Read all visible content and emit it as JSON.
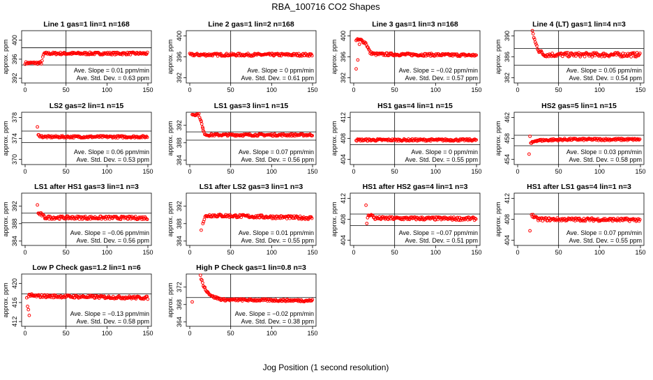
{
  "title": "RBA_100716  CO2 Shapes",
  "xlabel": "Jog Position (1 second resolution)",
  "ylabel": "approx. ppm",
  "x_ticks": [
    0,
    50,
    100,
    150
  ],
  "stat_labels": {
    "slope_prefix": "Ave. Slope = ",
    "slope_unit": " ppm/min",
    "sd_prefix": "Ave. Std. Dev. = ",
    "sd_unit": " ppm"
  },
  "marker_color": "#ff0000",
  "chart_data": [
    {
      "type": "scatter",
      "title": "Line 1 gas=1 lin=1 n=168",
      "xlim": [
        0,
        150
      ],
      "ylim": [
        391,
        402
      ],
      "y_ticks": [
        392,
        396,
        400
      ],
      "vline": 50,
      "hlines": [
        394.8,
        398.4
      ],
      "slope": "0.01",
      "sd": "0.63",
      "profile": [
        [
          0,
          395.2
        ],
        [
          20,
          395.2
        ],
        [
          23,
          397.2
        ],
        [
          150,
          397.2
        ]
      ],
      "noise": 0.25,
      "outliers": []
    },
    {
      "type": "scatter",
      "title": "Line 2 gas=1 lin=2 n=168",
      "xlim": [
        0,
        150
      ],
      "ylim": [
        391,
        401
      ],
      "y_ticks": [
        392,
        396,
        400
      ],
      "vline": 50,
      "hlines": [],
      "slope": "0",
      "sd": "0.61",
      "profile": [
        [
          0,
          396.4
        ],
        [
          150,
          396.4
        ]
      ],
      "noise": 0.25,
      "outliers": []
    },
    {
      "type": "scatter",
      "title": "Line 3 gas=1 lin=3 n=168",
      "xlim": [
        0,
        150
      ],
      "ylim": [
        391,
        401
      ],
      "y_ticks": [
        392,
        396,
        400
      ],
      "vline": 50,
      "hlines": [],
      "slope": "−0.02",
      "sd": "0.57",
      "profile": [
        [
          3,
          399.2
        ],
        [
          9,
          399.2
        ],
        [
          15,
          398.6
        ],
        [
          20,
          396.8
        ],
        [
          26,
          396.5
        ],
        [
          150,
          396.3
        ]
      ],
      "noise": 0.25,
      "outliers": [
        [
          3,
          393.7
        ],
        [
          5,
          395.4
        ],
        [
          7,
          398.4
        ]
      ]
    },
    {
      "type": "scatter",
      "title": "Line 4 (LT) gas=1 lin=4 n=3",
      "xlim": [
        0,
        150
      ],
      "ylim": [
        381,
        391
      ],
      "y_ticks": [
        382,
        386,
        390
      ],
      "vline": 50,
      "hlines": [
        384.4,
        387.6
      ],
      "slope": "0.05",
      "sd": "0.54",
      "profile": [
        [
          18,
          390.9
        ],
        [
          22,
          388.5
        ],
        [
          26,
          387.2
        ],
        [
          32,
          386.4
        ],
        [
          150,
          386.4
        ]
      ],
      "noise": 0.4,
      "outliers": []
    },
    {
      "type": "scatter",
      "title": "LS2 gas=2 lin=1 n=15",
      "xlim": [
        0,
        150
      ],
      "ylim": [
        369,
        379
      ],
      "y_ticks": [
        370,
        374,
        378
      ],
      "vline": 50,
      "hlines": [
        373.2,
        375.4
      ],
      "slope": "0.06",
      "sd": "0.53",
      "profile": [
        [
          16,
          374.6
        ],
        [
          22,
          374.3
        ],
        [
          150,
          374.3
        ]
      ],
      "noise": 0.2,
      "outliers": [
        [
          15,
          376.2
        ]
      ]
    },
    {
      "type": "scatter",
      "title": "LS1 gas=3 lin=1 n=15",
      "xlim": [
        0,
        150
      ],
      "ylim": [
        383,
        395
      ],
      "y_ticks": [
        384,
        388,
        392
      ],
      "vline": 50,
      "hlines": [
        388.6,
        390.5
      ],
      "slope": "0.07",
      "sd": "0.56",
      "profile": [
        [
          3,
          394.5
        ],
        [
          11,
          394.5
        ],
        [
          13,
          393.5
        ],
        [
          15,
          392
        ],
        [
          17,
          390.3
        ],
        [
          21,
          389.8
        ],
        [
          150,
          389.8
        ]
      ],
      "noise": 0.25,
      "outliers": [
        [
          14,
          392.9
        ],
        [
          16,
          391.3
        ]
      ]
    },
    {
      "type": "scatter",
      "title": "HS1 gas=4 lin=1 n=15",
      "xlim": [
        0,
        150
      ],
      "ylim": [
        403,
        413
      ],
      "y_ticks": [
        404,
        408,
        412
      ],
      "vline": 50,
      "hlines": [
        406.8,
        409.4
      ],
      "slope": "0",
      "sd": "0.55",
      "profile": [
        [
          3,
          407.7
        ],
        [
          150,
          407.7
        ]
      ],
      "noise": 0.2,
      "outliers": []
    },
    {
      "type": "scatter",
      "title": "HS2 gas=5 lin=1 n=15",
      "xlim": [
        0,
        150
      ],
      "ylim": [
        453,
        463
      ],
      "y_ticks": [
        454,
        458,
        462
      ],
      "vline": 50,
      "hlines": [
        456.6,
        458.6
      ],
      "slope": "0.03",
      "sd": "0.58",
      "profile": [
        [
          16,
          457.0
        ],
        [
          22,
          457.6
        ],
        [
          60,
          457.8
        ],
        [
          150,
          457.8
        ]
      ],
      "noise": 0.2,
      "outliers": [
        [
          14,
          455.0
        ],
        [
          15,
          458.4
        ]
      ]
    },
    {
      "type": "scatter",
      "title": "LS1 after HS1 gas=3 lin=1 n=3",
      "xlim": [
        0,
        150
      ],
      "ylim": [
        383,
        395
      ],
      "y_ticks": [
        384,
        388,
        392
      ],
      "vline": 50,
      "hlines": [
        388.2,
        390.4
      ],
      "slope": "−0.06",
      "sd": "0.56",
      "profile": [
        [
          16,
          390.3
        ],
        [
          20,
          390.1
        ],
        [
          24,
          389.4
        ],
        [
          150,
          389.3
        ]
      ],
      "noise": 0.35,
      "outliers": [
        [
          15,
          392.3
        ]
      ]
    },
    {
      "type": "scatter",
      "title": "LS1 after LS2 gas=3 lin=1 n=3",
      "xlim": [
        0,
        150
      ],
      "ylim": [
        383,
        395
      ],
      "y_ticks": [
        384,
        388,
        392
      ],
      "vline": 50,
      "hlines": [],
      "slope": "0.01",
      "sd": "0.55",
      "profile": [
        [
          16,
          388.2
        ],
        [
          19,
          389.6
        ],
        [
          23,
          389.9
        ],
        [
          150,
          389.3
        ]
      ],
      "noise": 0.35,
      "outliers": [
        [
          14,
          386.5
        ]
      ]
    },
    {
      "type": "scatter",
      "title": "HS1 after HS2 gas=4 lin=1 n=3",
      "xlim": [
        0,
        150
      ],
      "ylim": [
        403,
        413
      ],
      "y_ticks": [
        404,
        408,
        412
      ],
      "vline": 50,
      "hlines": [
        406.8,
        409.0
      ],
      "slope": "−0.07",
      "sd": "0.51",
      "profile": [
        [
          17,
          408.4
        ],
        [
          20,
          409.0
        ],
        [
          26,
          408.2
        ],
        [
          150,
          408.1
        ]
      ],
      "noise": 0.3,
      "outliers": [
        [
          15,
          410.7
        ],
        [
          16,
          407.2
        ]
      ]
    },
    {
      "type": "scatter",
      "title": "HS1 after LS1 gas=4 lin=1 n=3",
      "xlim": [
        0,
        150
      ],
      "ylim": [
        403,
        413
      ],
      "y_ticks": [
        404,
        408,
        412
      ],
      "vline": 50,
      "hlines": [
        409.0
      ],
      "slope": "0.07",
      "sd": "0.55",
      "profile": [
        [
          17,
          408.9
        ],
        [
          24,
          408.0
        ],
        [
          150,
          407.9
        ]
      ],
      "noise": 0.3,
      "outliers": [
        [
          15,
          405.8
        ]
      ]
    },
    {
      "type": "scatter",
      "title": "Low P Check gas=1.2 lin=1 n=6",
      "xlim": [
        0,
        150
      ],
      "ylim": [
        411,
        422
      ],
      "y_ticks": [
        412,
        416,
        420
      ],
      "vline": 50,
      "hlines": [
        417.8
      ],
      "slope": "−0.13",
      "sd": "0.58",
      "profile": [
        [
          4,
          417.4
        ],
        [
          150,
          417.0
        ]
      ],
      "noise": 0.3,
      "outliers": [
        [
          2,
          417.0
        ],
        [
          3,
          415.2
        ],
        [
          4,
          414.5
        ],
        [
          5,
          413.3
        ],
        [
          6,
          417.6
        ],
        [
          8,
          417.8
        ]
      ]
    },
    {
      "type": "scatter",
      "title": "High P Check gas=1 lin=0.8 n=3",
      "xlim": [
        0,
        150
      ],
      "ylim": [
        363,
        375
      ],
      "y_ticks": [
        364,
        368,
        372
      ],
      "vline": 50,
      "hlines": [
        369.6
      ],
      "slope": "−0.02",
      "sd": "0.38",
      "profile": [
        [
          13,
          374.5
        ],
        [
          17,
          372.2
        ],
        [
          22,
          370.8
        ],
        [
          28,
          369.8
        ],
        [
          40,
          369.1
        ],
        [
          150,
          368.9
        ]
      ],
      "noise": 0.25,
      "outliers": [
        [
          3,
          368.6
        ]
      ]
    }
  ]
}
